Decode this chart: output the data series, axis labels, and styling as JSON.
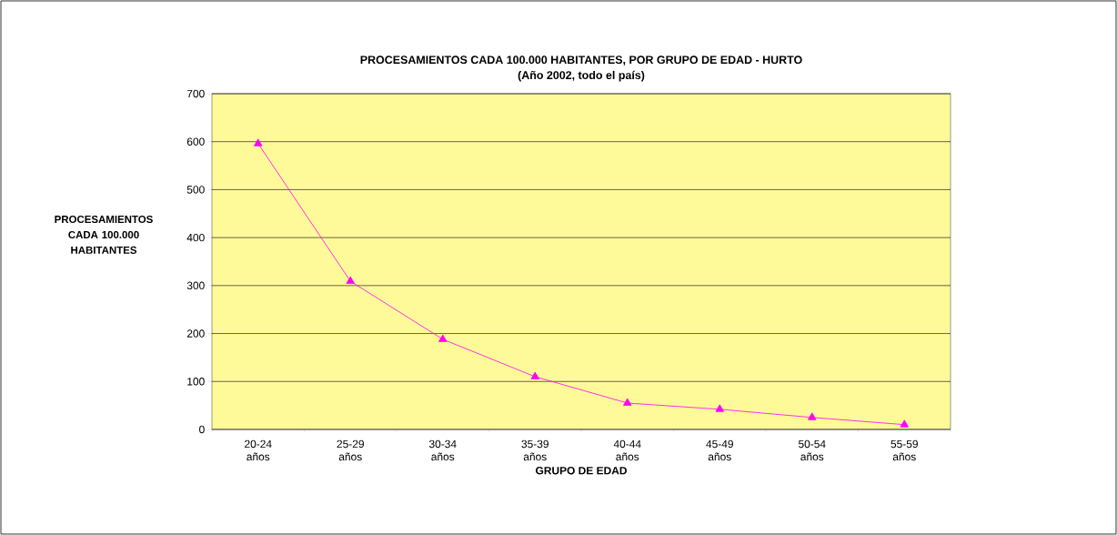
{
  "chart_data": {
    "type": "line",
    "title": "PROCESAMIENTOS CADA 100.000 HABITANTES, POR GRUPO DE EDAD - HURTO",
    "subtitle": "(Año 2002, todo el país)",
    "xlabel": "GRUPO DE EDAD",
    "ylabel": "PROCESAMIENTOS CADA 100.000 HABITANTES",
    "categories": [
      "20-24 años",
      "25-29 años",
      "30-34 años",
      "35-39 años",
      "40-44 años",
      "45-49 años",
      "50-54 años",
      "55-59 años"
    ],
    "series": [
      {
        "color": "#ff00ff",
        "values": [
          596,
          309,
          188,
          110,
          55,
          42,
          25,
          10
        ]
      }
    ],
    "ylim": [
      0,
      700
    ],
    "yticks": [
      0,
      100,
      200,
      300,
      400,
      500,
      600,
      700
    ],
    "grid": "y",
    "marker": "triangle",
    "line_style": "solid"
  }
}
